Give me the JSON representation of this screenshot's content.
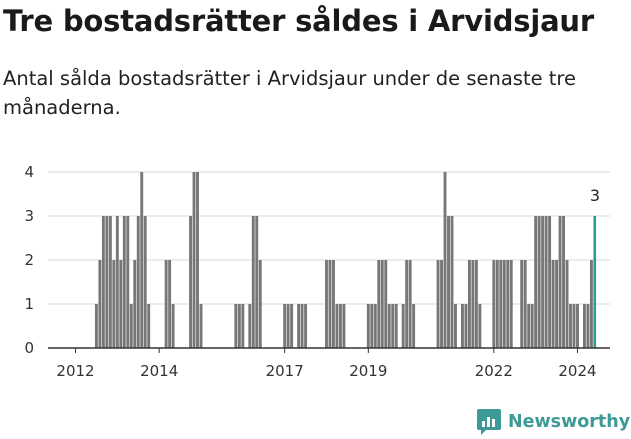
{
  "title": "Tre bostadsrätter såldes i Arvidsjaur",
  "subtitle": "Antal sålda bostadsrätter i Arvidsjaur under de senaste tre månaderna.",
  "brand": "Newsworthy",
  "colors": {
    "bar": "#77777a",
    "highlight": "#2a9d91",
    "grid": "#d9d9d9",
    "axis": "#333333",
    "brand": "#3d9a96"
  },
  "chart_data": {
    "type": "bar",
    "title": "Tre bostadsrätter såldes i Arvidsjaur",
    "subtitle": "Antal sålda bostadsrätter i Arvidsjaur under de senaste tre månaderna.",
    "xlabel": "",
    "ylabel": "",
    "ylim": [
      0,
      4
    ],
    "yticks": [
      0,
      1,
      2,
      3,
      4
    ],
    "xticks": [
      {
        "label": "2012",
        "index": 0
      },
      {
        "label": "2014",
        "index": 24
      },
      {
        "label": "2017",
        "index": 60
      },
      {
        "label": "2019",
        "index": 84
      },
      {
        "label": "2022",
        "index": 120
      },
      {
        "label": "2024",
        "index": 144
      }
    ],
    "start": "2012-01",
    "frequency": "monthly",
    "values": [
      0,
      0,
      0,
      0,
      0,
      0,
      1,
      2,
      3,
      3,
      3,
      2,
      3,
      2,
      3,
      3,
      1,
      2,
      3,
      4,
      3,
      1,
      0,
      0,
      0,
      0,
      2,
      2,
      1,
      0,
      0,
      0,
      0,
      3,
      4,
      4,
      1,
      0,
      0,
      0,
      0,
      0,
      0,
      0,
      0,
      0,
      1,
      1,
      1,
      0,
      1,
      3,
      3,
      2,
      0,
      0,
      0,
      0,
      0,
      0,
      1,
      1,
      1,
      0,
      1,
      1,
      1,
      0,
      0,
      0,
      0,
      0,
      2,
      2,
      2,
      1,
      1,
      1,
      0,
      0,
      0,
      0,
      0,
      0,
      1,
      1,
      1,
      2,
      2,
      2,
      1,
      1,
      1,
      0,
      1,
      2,
      2,
      1,
      0,
      0,
      0,
      0,
      0,
      0,
      2,
      2,
      4,
      3,
      3,
      1,
      0,
      1,
      1,
      2,
      2,
      2,
      1,
      0,
      0,
      0,
      2,
      2,
      2,
      2,
      2,
      2,
      0,
      0,
      2,
      2,
      1,
      1,
      3,
      3,
      3,
      3,
      3,
      2,
      2,
      3,
      3,
      2,
      1,
      1,
      1,
      0,
      1,
      1,
      2,
      3
    ],
    "highlight_last": true,
    "annotation": "3"
  }
}
